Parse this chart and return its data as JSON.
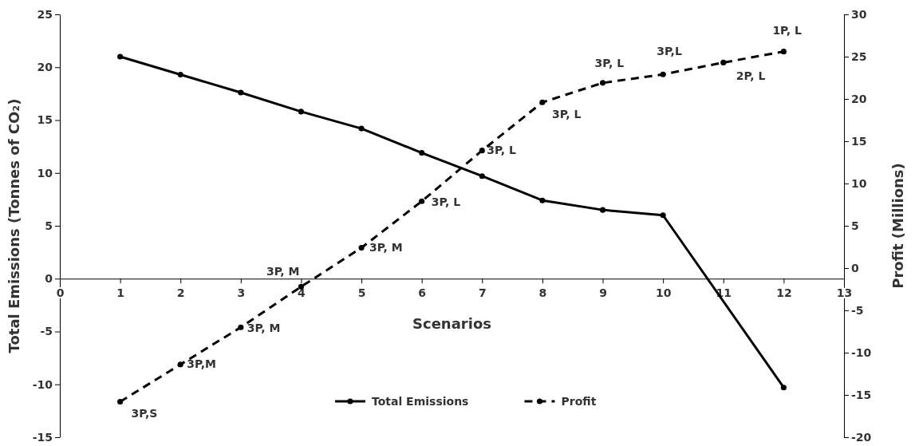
{
  "chart_data": {
    "type": "line",
    "xlabel": "Scenarios",
    "ylabel": "Total Emissions  (Tonnes of CO₂)",
    "y2label": "Profit  (Millions)",
    "x": [
      1,
      2,
      3,
      4,
      5,
      6,
      7,
      8,
      9,
      10,
      11,
      12
    ],
    "xlim": [
      0,
      13
    ],
    "xticks": [
      0,
      1,
      2,
      3,
      4,
      5,
      6,
      7,
      8,
      9,
      10,
      11,
      12,
      13
    ],
    "ylim": [
      -15,
      25
    ],
    "yticks": [
      -15,
      -10,
      -5,
      0,
      5,
      10,
      15,
      20,
      25
    ],
    "y2lim": [
      -20,
      30
    ],
    "y2ticks": [
      -20,
      -15,
      -10,
      -5,
      0,
      5,
      10,
      15,
      20,
      25,
      30
    ],
    "series": [
      {
        "name": "Total Emissions",
        "color": "#000000",
        "line_style": "solid",
        "x": [
          1,
          2,
          3,
          4,
          5,
          6,
          7,
          8,
          9,
          10,
          12
        ],
        "values": [
          21.0,
          19.3,
          17.6,
          15.8,
          14.2,
          11.9,
          9.7,
          7.4,
          6.5,
          6.0,
          -10.3
        ]
      },
      {
        "name": "Profit",
        "color": "#000000",
        "line_style": "dashed",
        "axis": "y2",
        "values": [
          -15.8,
          -11.4,
          -7.0,
          -2.2,
          2.4,
          7.9,
          13.9,
          19.6,
          21.9,
          22.9,
          24.3,
          25.6
        ]
      }
    ],
    "annotations": [
      "3P,S",
      "3P,M",
      "3P, M",
      "3P, M",
      "3P, M",
      "3P, L",
      "3P, L",
      "3P, L",
      "3P, L",
      "3P,L",
      "2P, L",
      "1P, L"
    ],
    "marker": "circle",
    "grid": false,
    "legend": "bottom"
  }
}
